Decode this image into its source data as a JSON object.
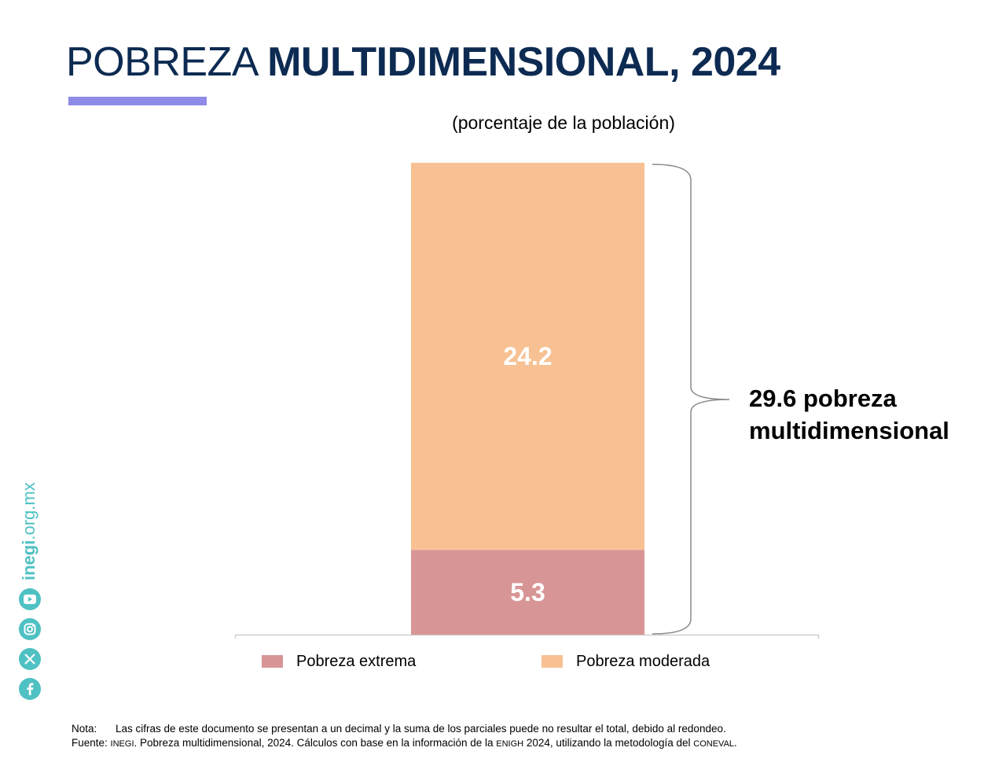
{
  "header": {
    "title_light": "POBREZA ",
    "title_bold": "MULTIDIMENSIONAL, 2024",
    "subtitle": "(porcentaje de la población)",
    "accent_color": "#8e8ae8",
    "title_color": "#0d2b52"
  },
  "chart_data": {
    "type": "bar",
    "stacked": true,
    "categories": [
      ""
    ],
    "series": [
      {
        "name": "Pobreza extrema",
        "values": [
          5.3
        ],
        "color": "#d89595"
      },
      {
        "name": "Pobreza moderada",
        "values": [
          24.2
        ],
        "color": "#f8c193"
      }
    ],
    "total_annotation": {
      "line1": "29.6 pobreza",
      "line2": "multidimensional",
      "value": 29.6
    },
    "legend_position": "bottom",
    "grid": false
  },
  "footnotes": {
    "nota_key": "Nota:",
    "nota_text": "Las cifras de este documento se presentan a un decimal y la suma de los parciales puede no resultar el total, debido al redondeo.",
    "fuente_key": "Fuente:",
    "fuente_parts": {
      "org": "INEGI",
      "t1": ". Pobreza multidimensional, 2024. Cálculos con base en la información de la ",
      "survey": "ENIGH",
      "t2": " 2024, utilizando la metodología del ",
      "council": "CONEVAL",
      "t3": "."
    }
  },
  "sidebar": {
    "site_bold": "inegi",
    "site_rest": ".org.mx",
    "social_icons": [
      "youtube-icon",
      "instagram-icon",
      "x-icon",
      "facebook-icon"
    ],
    "brand_color": "#4fc1c3"
  }
}
